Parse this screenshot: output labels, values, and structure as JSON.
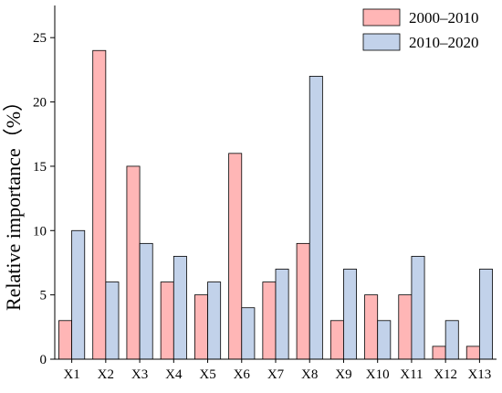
{
  "chart_data": {
    "type": "bar",
    "categories": [
      "X1",
      "X2",
      "X3",
      "X4",
      "X5",
      "X6",
      "X7",
      "X8",
      "X9",
      "X10",
      "X11",
      "X12",
      "X13"
    ],
    "series": [
      {
        "name": "2000–2010",
        "values": [
          3,
          24,
          15,
          6,
          5,
          16,
          6,
          9,
          3,
          5,
          5,
          1,
          1
        ],
        "color": "#ffb6b6"
      },
      {
        "name": "2010–2020",
        "values": [
          10,
          6,
          9,
          8,
          6,
          4,
          7,
          22,
          7,
          3,
          8,
          3,
          7
        ],
        "color": "#c2d2ea"
      }
    ],
    "title": "",
    "xlabel": "",
    "ylabel": "Relative importance（%）",
    "ylim": [
      0,
      27.5
    ],
    "yticks": [
      0,
      5,
      10,
      15,
      20,
      25
    ],
    "grid": false,
    "legend_position": "top-right"
  }
}
